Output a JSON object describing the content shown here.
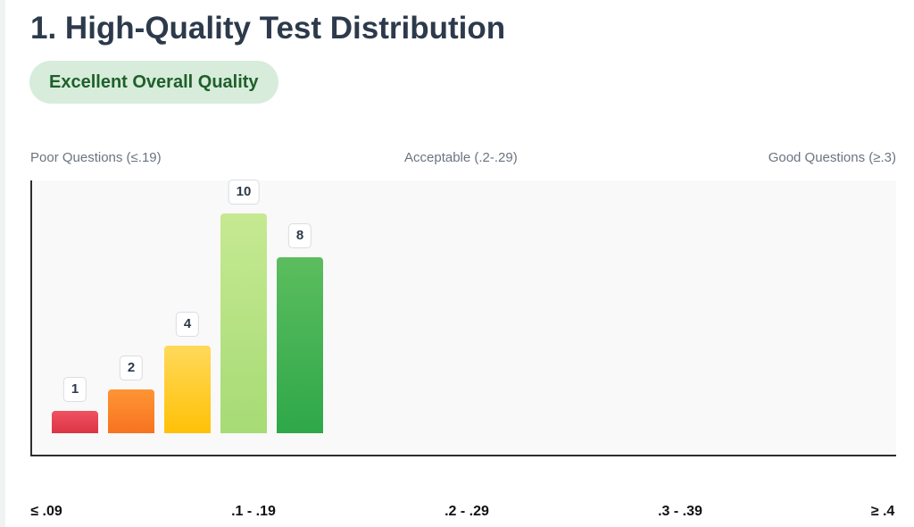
{
  "page": {
    "title": "1. High-Quality Test Distribution",
    "badge": "Excellent Overall Quality"
  },
  "zones": {
    "poor": "Poor Questions (≤.19)",
    "acceptable": "Acceptable (.2-.29)",
    "good": "Good Questions (≥.3)"
  },
  "chart_data": {
    "type": "bar",
    "title": "",
    "xlabel": "",
    "ylabel": "",
    "grid": false,
    "x_ticks": [
      "≤ .09",
      ".1 - .19",
      ".2 - .29",
      ".3 - .39",
      "≥ .4"
    ],
    "values": [
      1,
      2,
      4,
      10,
      8
    ],
    "value_labels": [
      "1",
      "2",
      "4",
      "10",
      "8"
    ],
    "colors": [
      [
        "#ee5261",
        "#dc3545"
      ],
      [
        "#ff9535",
        "#f7731f"
      ],
      [
        "#ffd95a",
        "#ffc107"
      ],
      [
        "#c6e992",
        "#a6db75"
      ],
      [
        "#5cbd5e",
        "#2ea84a"
      ]
    ],
    "ylim": [
      0,
      11.5
    ]
  }
}
